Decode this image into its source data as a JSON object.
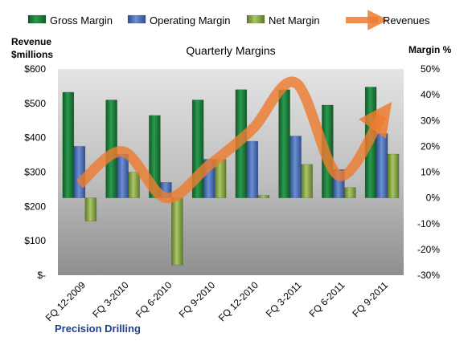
{
  "chart_data": {
    "type": "bar",
    "title": "Quarterly Margins",
    "left_axis_title_line1": "Revenue",
    "left_axis_title_line2": "$millions",
    "right_axis_title": "Margin %",
    "source_label": "Precision Drilling",
    "categories": [
      "FQ 12-2009",
      "FQ 3-2010",
      "FQ 6-2010",
      "FQ 9-2010",
      "FQ 12-2010",
      "FQ 3-2011",
      "FQ 6-2011",
      "FQ 9-2011"
    ],
    "left_axis": {
      "min": 0,
      "max": 600,
      "step": 100,
      "tick_labels": [
        "$-",
        "$100",
        "$200",
        "$300",
        "$400",
        "$500",
        "$600"
      ]
    },
    "right_axis": {
      "min": -30,
      "max": 50,
      "step": 10,
      "tick_labels": [
        "-30%",
        "-20%",
        "-10%",
        "0%",
        "10%",
        "20%",
        "30%",
        "40%",
        "50%"
      ]
    },
    "series": [
      {
        "name": "Gross Margin",
        "type": "bar",
        "axis": "right",
        "color": "#1e7a3c",
        "values": [
          41,
          38,
          32,
          38,
          42,
          42,
          36,
          43
        ]
      },
      {
        "name": "Operating Margin",
        "type": "bar",
        "axis": "right",
        "color": "#4a6fb5",
        "values": [
          20,
          17,
          6,
          15,
          22,
          24,
          11,
          25
        ]
      },
      {
        "name": "Net Margin",
        "type": "bar",
        "axis": "right",
        "color": "#8fae4a",
        "values": [
          -9,
          10,
          -26,
          15,
          1,
          13,
          4,
          17
        ]
      },
      {
        "name": "Revenues",
        "type": "line",
        "axis": "left",
        "color": "#ed7d31",
        "values": [
          265,
          360,
          225,
          320,
          425,
          560,
          290,
          465
        ]
      }
    ],
    "grid": false,
    "legend_position": "top"
  }
}
